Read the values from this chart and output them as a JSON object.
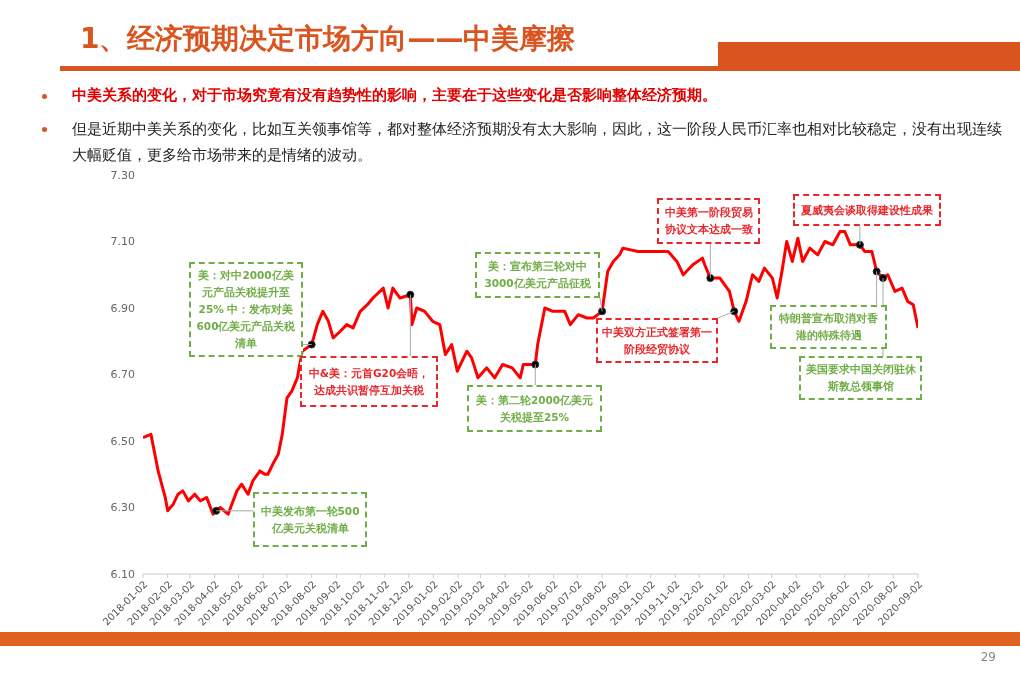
{
  "chart_data": {
    "type": "line",
    "title": "1、经济预期决定市场方向——中美摩擦",
    "subtitle": "中美关系的变化，对于市场究竟有没有趋势性的影响，主要在于这些变化是否影响整体经济预期。",
    "series": [
      {
        "color": "#ff0000",
        "x": [
          "2018-01-02",
          "2018-01-12",
          "2018-01-21",
          "2018-01-30",
          "2018-02-02",
          "2018-02-09",
          "2018-02-15",
          "2018-02-21",
          "2018-02-28",
          "2018-03-08",
          "2018-03-15",
          "2018-03-23",
          "2018-03-31",
          "2018-04-04",
          "2018-04-09",
          "2018-04-19",
          "2018-04-30",
          "2018-05-06",
          "2018-05-14",
          "2018-05-20",
          "2018-05-29",
          "2018-06-04",
          "2018-06-08",
          "2018-06-14",
          "2018-06-21",
          "2018-06-26",
          "2018-07-02",
          "2018-07-08",
          "2018-07-15",
          "2018-07-21",
          "2018-08-02",
          "2018-08-09",
          "2018-08-16",
          "2018-08-23",
          "2018-08-29",
          "2018-09-07",
          "2018-09-15",
          "2018-09-23",
          "2018-10-02",
          "2018-10-11",
          "2018-10-18",
          "2018-10-31",
          "2018-11-06",
          "2018-11-12",
          "2018-11-21",
          "2018-12-04",
          "2018-12-06",
          "2018-12-12",
          "2018-12-22",
          "2019-01-01",
          "2019-01-10",
          "2019-01-17",
          "2019-01-25",
          "2019-02-01",
          "2019-02-13",
          "2019-02-19",
          "2019-02-27",
          "2019-03-10",
          "2019-03-20",
          "2019-03-30",
          "2019-04-11",
          "2019-04-21",
          "2019-04-25",
          "2019-05-10",
          "2019-05-13",
          "2019-05-22",
          "2019-06-01",
          "2019-06-16",
          "2019-06-23",
          "2019-07-03",
          "2019-07-14",
          "2019-07-22",
          "2019-08-02",
          "2019-08-09",
          "2019-08-16",
          "2019-08-24",
          "2019-08-28",
          "2019-09-16",
          "2019-10-05",
          "2019-10-24",
          "2019-11-04",
          "2019-11-12",
          "2019-11-24",
          "2019-12-06",
          "2019-12-09",
          "2019-12-16",
          "2019-12-28",
          "2020-01-09",
          "2020-01-15",
          "2020-01-21",
          "2020-01-30",
          "2020-02-07",
          "2020-02-15",
          "2020-02-22",
          "2020-03-03",
          "2020-03-09",
          "2020-03-15",
          "2020-03-21",
          "2020-03-28",
          "2020-04-04",
          "2020-04-10",
          "2020-04-19",
          "2020-04-29",
          "2020-05-08",
          "2020-05-18",
          "2020-05-27",
          "2020-06-02",
          "2020-06-09",
          "2020-06-21",
          "2020-06-27",
          "2020-07-06",
          "2020-07-12",
          "2020-07-20",
          "2020-07-26",
          "2020-08-04",
          "2020-08-13",
          "2020-08-20",
          "2020-08-27",
          "2020-09-02"
        ],
        "values": [
          6.51,
          6.52,
          6.41,
          6.33,
          6.29,
          6.31,
          6.34,
          6.35,
          6.32,
          6.34,
          6.32,
          6.33,
          6.28,
          6.29,
          6.3,
          6.28,
          6.35,
          6.37,
          6.34,
          6.38,
          6.41,
          6.4,
          6.4,
          6.43,
          6.46,
          6.52,
          6.63,
          6.65,
          6.69,
          6.77,
          6.79,
          6.85,
          6.89,
          6.86,
          6.81,
          6.83,
          6.85,
          6.84,
          6.89,
          6.91,
          6.93,
          6.96,
          6.9,
          6.96,
          6.93,
          6.94,
          6.85,
          6.9,
          6.89,
          6.86,
          6.85,
          6.76,
          6.79,
          6.71,
          6.77,
          6.75,
          6.69,
          6.72,
          6.69,
          6.73,
          6.72,
          6.69,
          6.73,
          6.73,
          6.79,
          6.9,
          6.89,
          6.89,
          6.85,
          6.88,
          6.87,
          6.87,
          6.89,
          7.01,
          7.04,
          7.06,
          7.08,
          7.07,
          7.07,
          7.07,
          7.04,
          7.0,
          7.03,
          7.05,
          7.03,
          6.99,
          6.99,
          6.95,
          6.89,
          6.86,
          6.92,
          7.0,
          6.98,
          7.02,
          6.99,
          6.93,
          7.01,
          7.1,
          7.04,
          7.11,
          7.04,
          7.08,
          7.06,
          7.1,
          7.09,
          7.13,
          7.13,
          7.09,
          7.09,
          7.07,
          7.07,
          7.01,
          6.99,
          7.0,
          6.95,
          6.96,
          6.92,
          6.91,
          6.84
        ]
      }
    ],
    "xlim": [
      "2018-01-02",
      "2020-09-02"
    ],
    "xticks": [
      "2018-01-02",
      "2018-02-02",
      "2018-03-02",
      "2018-04-02",
      "2018-05-02",
      "2018-06-02",
      "2018-07-02",
      "2018-08-02",
      "2018-09-02",
      "2018-10-02",
      "2018-11-02",
      "2018-12-02",
      "2019-01-02",
      "2019-02-02",
      "2019-03-02",
      "2019-04-02",
      "2019-05-02",
      "2019-06-02",
      "2019-07-02",
      "2019-08-02",
      "2019-09-02",
      "2019-10-02",
      "2019-11-02",
      "2019-12-02",
      "2020-01-02",
      "2020-02-02",
      "2020-03-02",
      "2020-04-02",
      "2020-05-02",
      "2020-06-02",
      "2020-07-02",
      "2020-08-02",
      "2020-09-02"
    ],
    "ylim": [
      6.1,
      7.3
    ],
    "yticks": [
      {
        "value": 6.1,
        "label": "6.10"
      },
      {
        "value": 6.3,
        "label": "6.30"
      },
      {
        "value": 6.5,
        "label": "6.50"
      },
      {
        "value": 6.7,
        "label": "6.70"
      },
      {
        "value": 6.9,
        "label": "6.90"
      },
      {
        "value": 7.1,
        "label": "7.10"
      },
      {
        "value": 7.3,
        "label": "7.30"
      }
    ],
    "marker": "none",
    "line_style": "solid",
    "annotations": [
      {
        "text": "中美发布第一轮500亿美元关税清单",
        "x": "2018-04-04",
        "y": 6.29
      },
      {
        "text": "美：对中2000亿美元产品关税提升至25% 中：发布对美600亿美元产品关税清单",
        "x": "2018-08-02",
        "y": 6.79
      },
      {
        "text": "中&美：元首G20会晤，达成共识暂停互加关税",
        "x": "2018-12-04",
        "y": 6.94
      },
      {
        "text": "美：第二轮2000亿美元关税提至25%",
        "x": "2019-05-10",
        "y": 6.73
      },
      {
        "text": "美：宣布第三轮对中3000亿美元产品征税",
        "x": "2019-08-02",
        "y": 6.89
      },
      {
        "text": "中美双方正式签署第一阶段经贸协议",
        "x": "2020-01-15",
        "y": 6.89
      },
      {
        "text": "中美第一阶段贸易协议文本达成一致",
        "x": "2019-12-16",
        "y": 6.99
      },
      {
        "text": "夏威夷会谈取得建设性成果",
        "x": "2020-06-21",
        "y": 7.09
      },
      {
        "text": "特朗普宣布取消对香港的特殊待遇",
        "x": "2020-07-12",
        "y": 7.01
      },
      {
        "text": "美国要求中国关闭驻休斯敦总领事馆",
        "x": "2020-07-20",
        "y": 6.99
      },
      "但是近期中美关系的变化，比如互关领事馆等，都对整体经济预期没有太大影响，因此，这一阶段人民币汇率也相对比较稳定，没有出现连续大幅贬值，更多给市场带来的是情绪的波动。",
      "29"
    ]
  }
}
